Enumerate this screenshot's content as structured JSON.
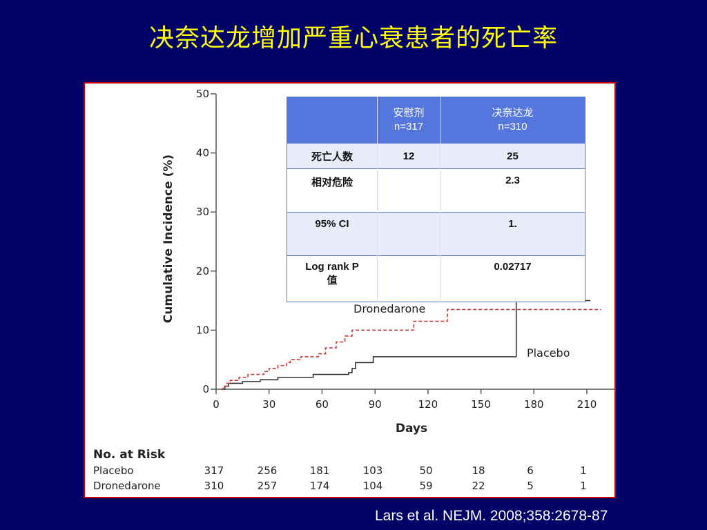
{
  "slide": {
    "title": "决奈达龙增加严重心衰患者的死亡率",
    "citation": "Lars et al. NEJM. 2008;358:2678-87"
  },
  "table": {
    "header": [
      "",
      "安慰剂\nn=317",
      "决奈达龙\nn=310"
    ],
    "rows": [
      {
        "label": "死亡人数",
        "placebo": "12",
        "dronedarone": "25"
      },
      {
        "label": "相对危险",
        "placebo": "",
        "dronedarone": "2.3"
      },
      {
        "label": "95% CI",
        "placebo": "",
        "dronedarone": "1."
      },
      {
        "label": "Log rank P\n值",
        "placebo": "",
        "dronedarone": "0.02717"
      }
    ]
  },
  "chart_data": {
    "type": "line",
    "xlabel": "Days",
    "ylabel": "Cumulative Incidence (%)",
    "xlim": [
      0,
      210
    ],
    "ylim": [
      0,
      50
    ],
    "x_ticks": [
      0,
      30,
      60,
      90,
      120,
      150,
      180,
      210
    ],
    "y_ticks": [
      0,
      10,
      20,
      30,
      40,
      50
    ],
    "series": [
      {
        "name": "Placebo",
        "style": "solid",
        "color": "#333333",
        "step": [
          [
            3,
            0
          ],
          [
            5,
            0.5
          ],
          [
            7,
            1.0
          ],
          [
            15,
            1.3
          ],
          [
            25,
            1.6
          ],
          [
            35,
            2.0
          ],
          [
            55,
            2.5
          ],
          [
            75,
            2.8
          ],
          [
            77,
            3.5
          ],
          [
            79,
            4.5
          ],
          [
            89,
            5.5
          ],
          [
            168,
            5.5
          ],
          [
            170,
            15.0
          ],
          [
            212,
            15.0
          ]
        ]
      },
      {
        "name": "Dronedarone",
        "style": "dashed",
        "color": "#cc3333",
        "step": [
          [
            3,
            0
          ],
          [
            4,
            0.5
          ],
          [
            6,
            1.0
          ],
          [
            8,
            1.5
          ],
          [
            13,
            2.0
          ],
          [
            18,
            2.5
          ],
          [
            27,
            3.0
          ],
          [
            30,
            3.5
          ],
          [
            35,
            4.0
          ],
          [
            40,
            4.5
          ],
          [
            42,
            5.0
          ],
          [
            48,
            5.5
          ],
          [
            58,
            6.0
          ],
          [
            62,
            7.0
          ],
          [
            68,
            8.0
          ],
          [
            73,
            9.0
          ],
          [
            77,
            10.0
          ],
          [
            112,
            11.5
          ],
          [
            131,
            13.5
          ],
          [
            218,
            13.5
          ]
        ]
      }
    ],
    "annotations": [
      "Dronedarone",
      "Placebo"
    ],
    "risk_table": {
      "title": "No. at Risk",
      "days": [
        0,
        30,
        60,
        90,
        120,
        150,
        180,
        210
      ],
      "rows": [
        {
          "name": "Placebo",
          "values": [
            "317",
            "256",
            "181",
            "103",
            "50",
            "18",
            "6",
            "1"
          ]
        },
        {
          "name": "Dronedarone",
          "values": [
            "310",
            "257",
            "174",
            "104",
            "59",
            "22",
            "5",
            "1"
          ]
        }
      ]
    }
  }
}
